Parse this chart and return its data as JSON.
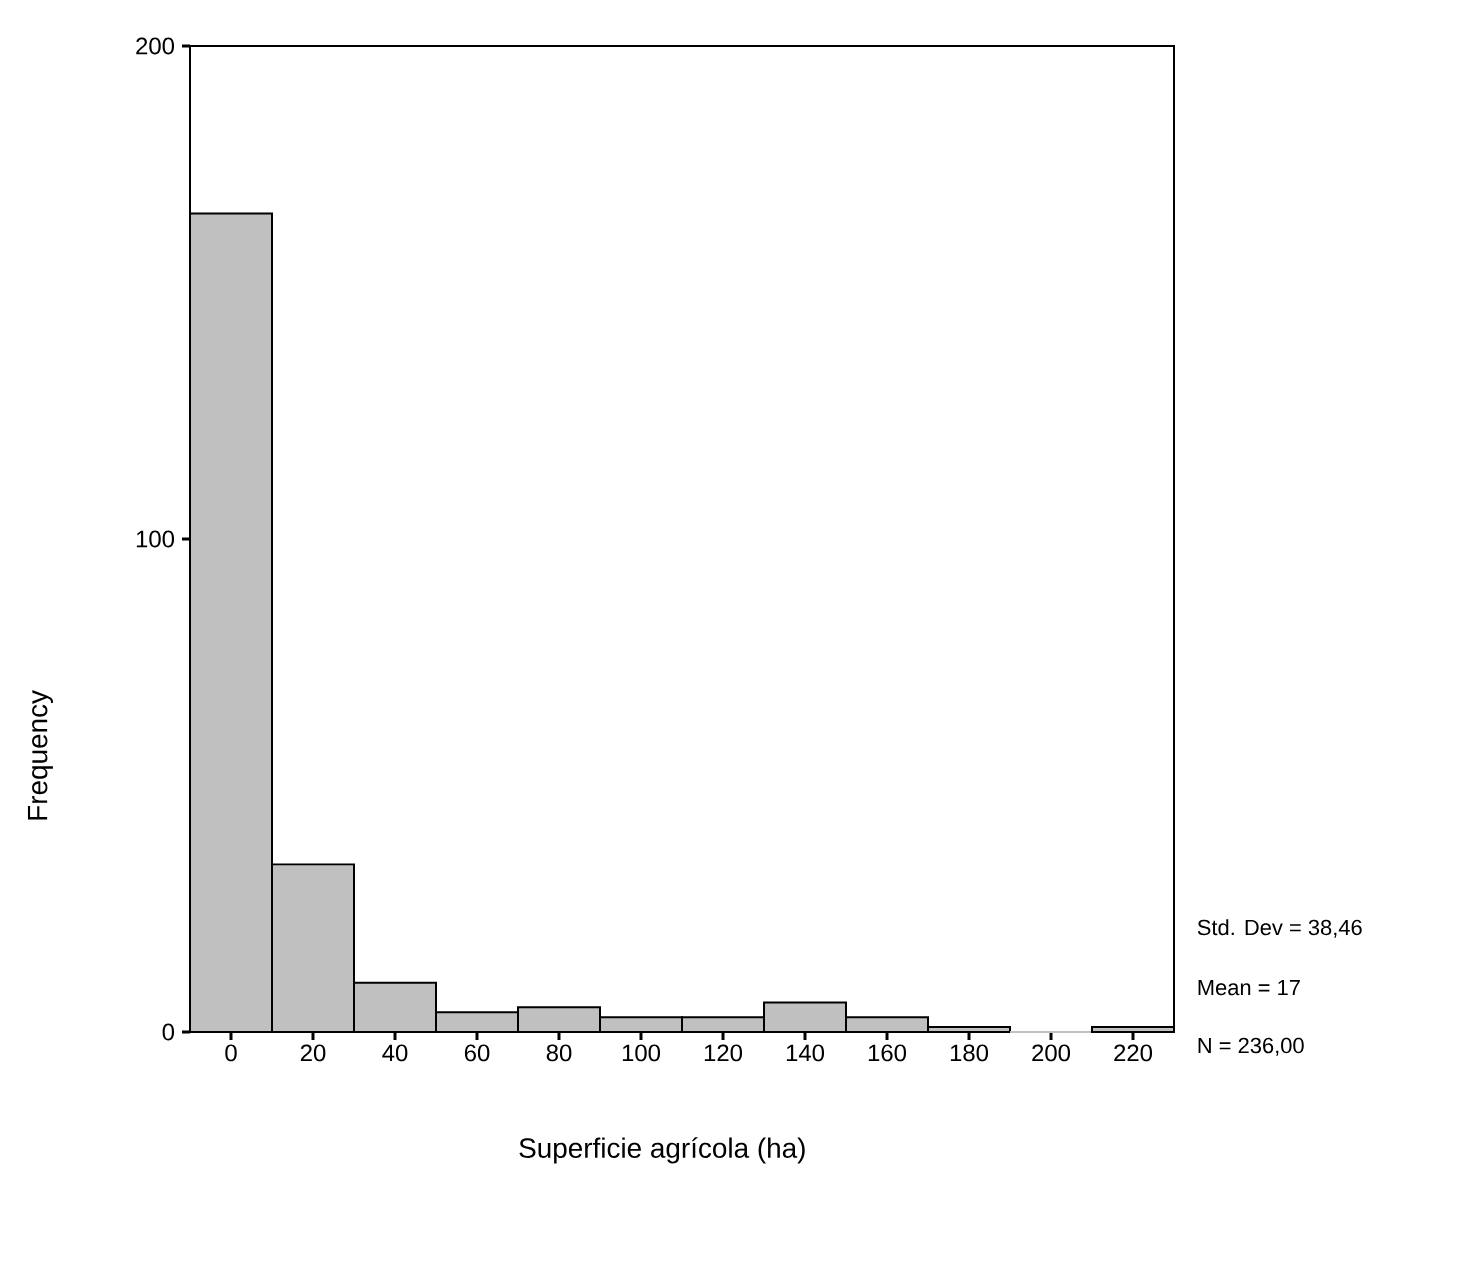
{
  "chart_data": {
    "type": "histogram",
    "xlabel": "Superficie agrícola (ha)",
    "ylabel": "Frequency",
    "bins": [
      -10,
      10,
      30,
      50,
      70,
      90,
      110,
      130,
      150,
      170,
      190,
      210,
      230
    ],
    "values": [
      166,
      34,
      10,
      4,
      5,
      3,
      3,
      6,
      3,
      1,
      0,
      1
    ],
    "color": "#c0c0c0",
    "xlim": [
      -10,
      230
    ],
    "ylim": [
      0,
      200
    ],
    "xticks": [
      0,
      20,
      40,
      60,
      80,
      100,
      120,
      140,
      160,
      180,
      200,
      220
    ],
    "yticks": [
      0,
      100,
      200
    ],
    "annotations": [
      "Std. Dev = 38,46",
      "Mean = 17",
      "N = 236,00"
    ]
  }
}
